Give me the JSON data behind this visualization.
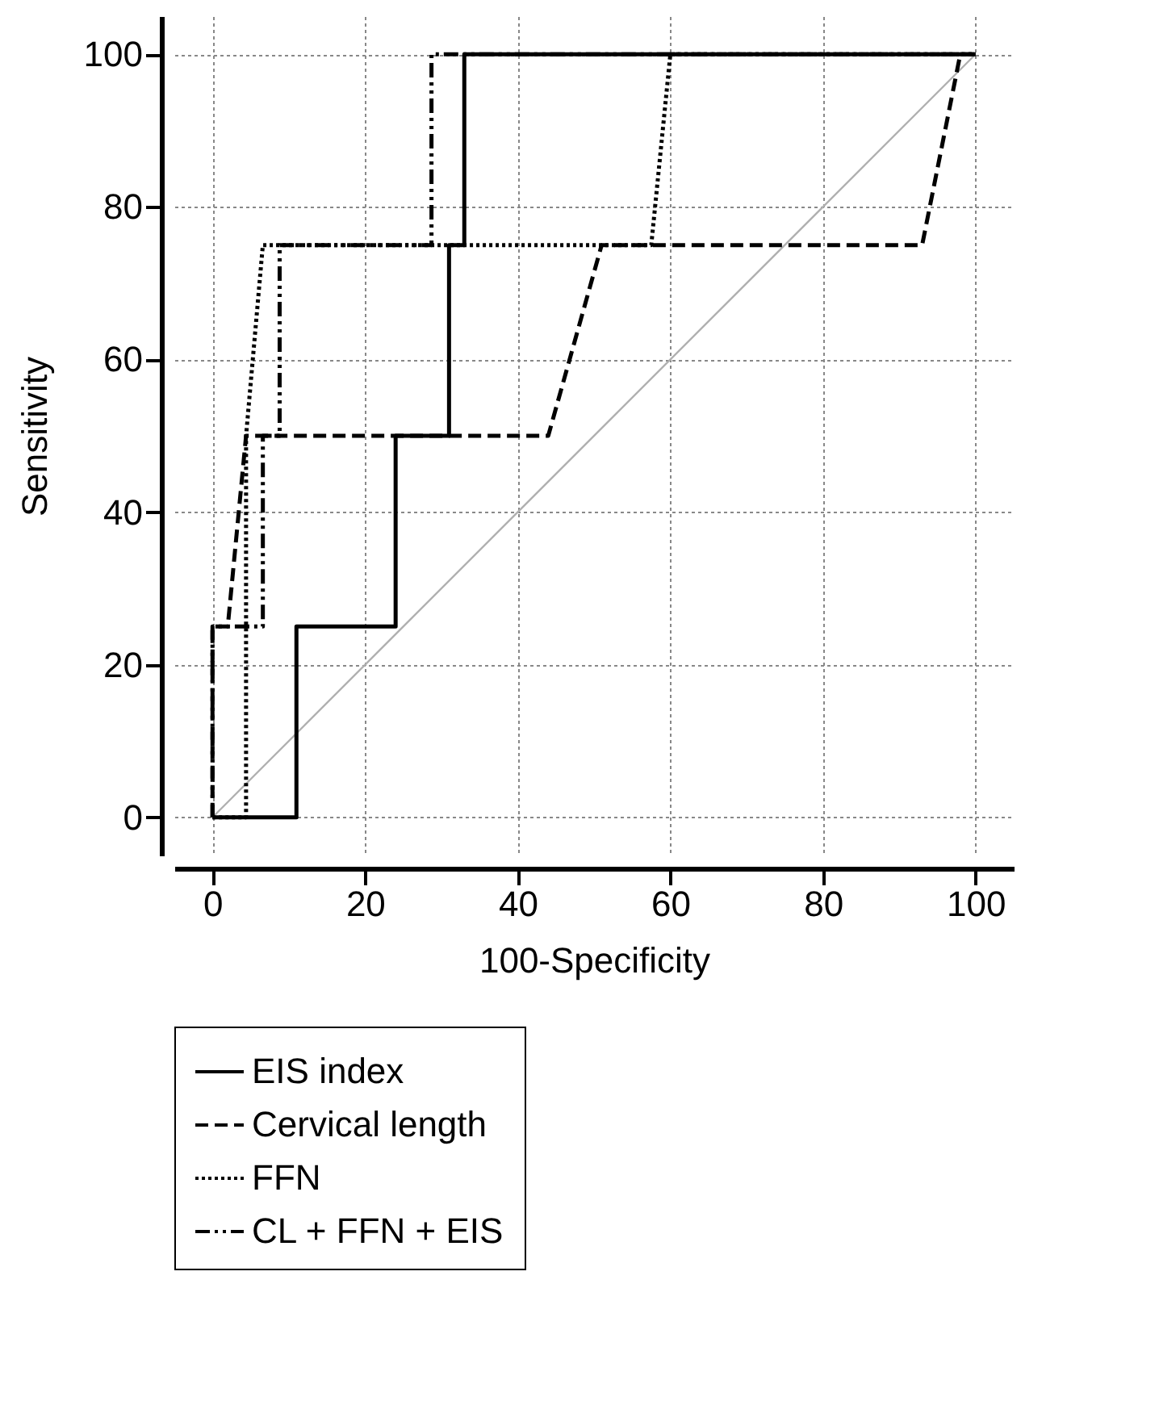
{
  "chart_data": {
    "type": "line",
    "xlabel": "100-Specificity",
    "ylabel": "Sensitivity",
    "xlim": [
      -5,
      105
    ],
    "ylim": [
      -5,
      105
    ],
    "xticks": [
      0,
      20,
      40,
      60,
      80,
      100
    ],
    "yticks": [
      0,
      20,
      40,
      60,
      80,
      100
    ],
    "grid": true,
    "legend": "bottom",
    "series": [
      {
        "name": "EIS index",
        "line_style": "solid",
        "color": "#000000",
        "x": [
          0,
          11,
          11,
          24,
          24,
          31,
          31,
          33,
          33,
          100
        ],
        "values": [
          0,
          0,
          25,
          25,
          50,
          50,
          75,
          75,
          100,
          100
        ]
      },
      {
        "name": "Cervical length",
        "line_style": "dashed",
        "color": "#000000",
        "x": [
          0,
          0,
          2,
          4.4,
          44,
          51,
          93,
          98,
          100
        ],
        "values": [
          0,
          25,
          25,
          50,
          50,
          75,
          75,
          100,
          100
        ]
      },
      {
        "name": "FFN",
        "line_style": "dotted",
        "color": "#000000",
        "x": [
          0,
          4.4,
          4.4,
          6.6,
          57.5,
          60,
          100
        ],
        "values": [
          0,
          0,
          50,
          75,
          75,
          100,
          100
        ]
      },
      {
        "name": "CL + FFN + EIS",
        "line_style": "dashdot",
        "color": "#000000",
        "x": [
          0,
          0,
          6.6,
          6.6,
          8.8,
          8.8,
          28.7,
          28.7,
          100
        ],
        "values": [
          0,
          25,
          25,
          50,
          50,
          75,
          75,
          100,
          100
        ]
      },
      {
        "line_style": "solid",
        "color": "#b0b0b0",
        "x": [
          0,
          100
        ],
        "values": [
          0,
          100
        ]
      }
    ]
  }
}
